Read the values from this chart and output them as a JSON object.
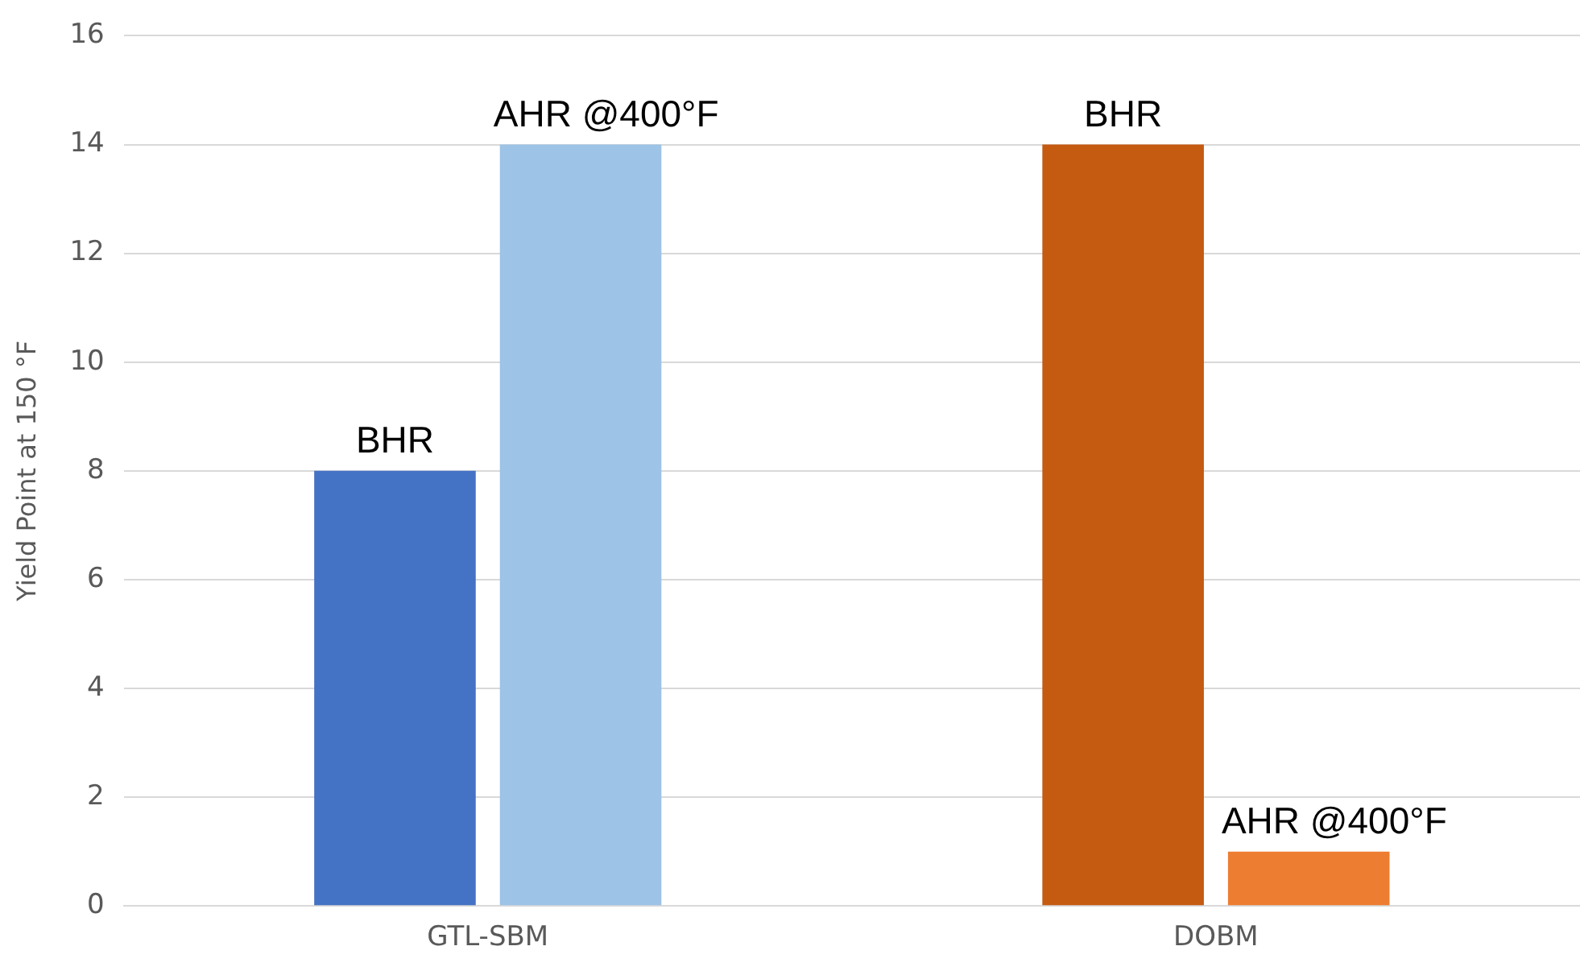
{
  "chart_data": {
    "type": "bar",
    "ylabel": "Yield Point at 150 °F",
    "categories": [
      "GTL-SBM",
      "DOBM"
    ],
    "series": [
      {
        "name": "BHR",
        "colors": [
          "#4472c4",
          "#c55a11"
        ],
        "values": [
          8,
          14
        ]
      },
      {
        "name": "AHR @400°F",
        "colors": [
          "#9dc3e6",
          "#ed7d31"
        ],
        "values": [
          14,
          1
        ]
      }
    ],
    "ylim": [
      0,
      16
    ],
    "yticks": [
      0,
      2,
      4,
      6,
      8,
      10,
      12,
      14,
      16
    ],
    "grid": "y",
    "legend": false
  }
}
